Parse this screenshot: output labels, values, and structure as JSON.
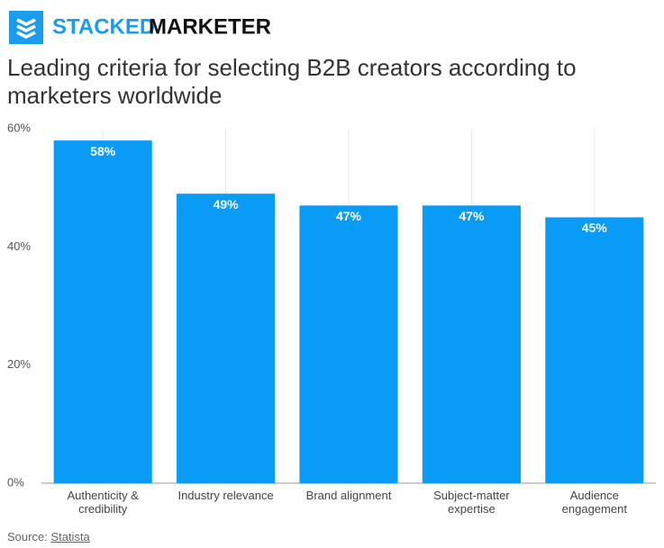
{
  "brand": {
    "first": "STACKED",
    "second": "MARKETER"
  },
  "chart_data": {
    "type": "bar",
    "title": "Leading criteria for selecting B2B creators according to marketers worldwide",
    "categories": [
      "Authenticity & credibility",
      "Industry relevance",
      "Brand alignment",
      "Subject-matter expertise",
      "Audience engagement"
    ],
    "values": [
      58,
      49,
      47,
      47,
      45
    ],
    "value_labels": [
      "58%",
      "49%",
      "47%",
      "47%",
      "45%"
    ],
    "color": "#0a9bf6",
    "ylim": [
      0,
      60
    ],
    "yticks": [
      {
        "value": 0,
        "label": "0%"
      },
      {
        "value": 20,
        "label": "20%"
      },
      {
        "value": 40,
        "label": "40%"
      },
      {
        "value": 60,
        "label": "60%"
      }
    ],
    "grid": "x"
  },
  "source": {
    "prefix": "Source:",
    "name": "Statista"
  }
}
